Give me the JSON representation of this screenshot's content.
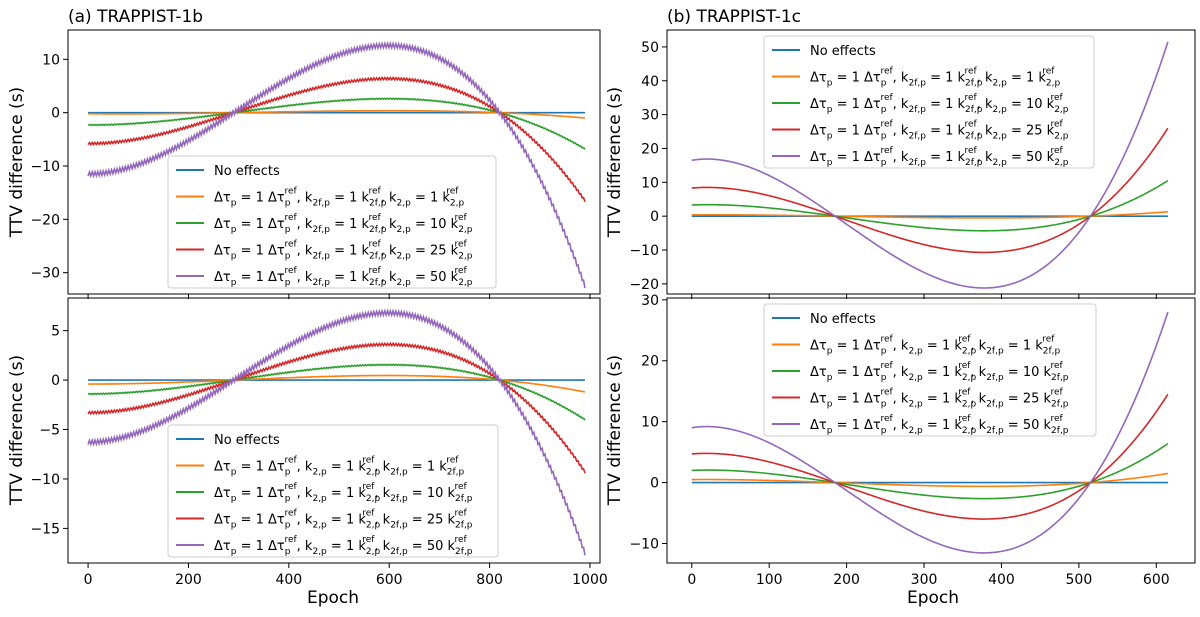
{
  "figure": {
    "titles": [
      "(a) TRAPPIST-1b",
      "(b) TRAPPIST-1c"
    ],
    "xlabel": "Epoch",
    "ylabel": "TTV difference (s)"
  },
  "colors": {
    "no_effects": "#1f77b4",
    "s1": "#ff7f0e",
    "s10": "#2ca02c",
    "s25": "#d62728",
    "s50": "#9467bd"
  },
  "chart_data": [
    {
      "id": "b-top",
      "type": "line",
      "title": "(a) TRAPPIST-1b",
      "xlabel": "",
      "ylabel": "TTV difference (s)",
      "xlim": [
        -40,
        1020
      ],
      "ylim": [
        -34,
        15.5
      ],
      "xticks": [
        0,
        200,
        400,
        600,
        800,
        1000
      ],
      "yticks": [
        -30,
        -20,
        -10,
        0,
        10
      ],
      "x_tick_labels_shown": false,
      "zeros": [
        290,
        820
      ],
      "x_end": 990,
      "ripple": true,
      "legend": {
        "position": "lower-center",
        "pre": "Δτ",
        "mid": "k",
        "pair": [
          "2f,p",
          "2,p"
        ],
        "labels": [
          "No effects",
          "1",
          "10",
          "25",
          "50"
        ]
      },
      "series": [
        {
          "name": "No effects",
          "value_at_0": 0,
          "value_at_end": 0
        },
        {
          "name": "1",
          "value_at_0": -0.2,
          "value_at_end": -1.0
        },
        {
          "name": "10",
          "value_at_0": -2.3,
          "value_at_end": -6.8
        },
        {
          "name": "25",
          "value_at_0": -5.8,
          "value_at_end": -16.5
        },
        {
          "name": "50",
          "value_at_0": -11.5,
          "value_at_end": -32.5
        }
      ]
    },
    {
      "id": "b-bottom",
      "type": "line",
      "title": "",
      "xlabel": "Epoch",
      "ylabel": "TTV difference (s)",
      "xlim": [
        -40,
        1020
      ],
      "ylim": [
        -18.5,
        8.3
      ],
      "xticks": [
        0,
        200,
        400,
        600,
        800,
        1000
      ],
      "yticks": [
        -15,
        -10,
        -5,
        0,
        5
      ],
      "x_tick_labels_shown": true,
      "zeros": [
        290,
        820
      ],
      "x_end": 990,
      "ripple": true,
      "legend": {
        "position": "lower-center",
        "pre": "Δτ",
        "mid": "k",
        "pair": [
          "2,p",
          "2f,p"
        ],
        "labels": [
          "No effects",
          "1",
          "10",
          "25",
          "50"
        ]
      },
      "series": [
        {
          "name": "No effects",
          "value_at_0": 0,
          "value_at_end": 0
        },
        {
          "name": "1",
          "value_at_0": -0.4,
          "value_at_end": -1.2
        },
        {
          "name": "10",
          "value_at_0": -1.4,
          "value_at_end": -4.0
        },
        {
          "name": "25",
          "value_at_0": -3.3,
          "value_at_end": -9.3
        },
        {
          "name": "50",
          "value_at_0": -6.3,
          "value_at_end": -17.5
        }
      ]
    },
    {
      "id": "c-top",
      "type": "line",
      "title": "(b) TRAPPIST-1c",
      "xlabel": "",
      "ylabel": "TTV difference (s)",
      "xlim": [
        -32,
        650
      ],
      "ylim": [
        -23,
        55
      ],
      "xticks": [
        0,
        100,
        200,
        300,
        400,
        500,
        600
      ],
      "yticks": [
        -20,
        -10,
        0,
        10,
        20,
        30,
        40,
        50
      ],
      "x_tick_labels_shown": false,
      "zeros": [
        185,
        515
      ],
      "x_end": 615,
      "ripple": false,
      "legend": {
        "position": "upper-center",
        "pre": "Δτ",
        "mid": "k",
        "pair": [
          "2f,p",
          "2,p"
        ],
        "labels": [
          "No effects",
          "1",
          "10",
          "25",
          "50"
        ]
      },
      "series": [
        {
          "name": "No effects",
          "value_at_0": 0,
          "value_at_end": 0
        },
        {
          "name": "1",
          "value_at_0": 0.4,
          "value_at_end": 1.3
        },
        {
          "name": "10",
          "value_at_0": 3.3,
          "value_at_end": 10.5
        },
        {
          "name": "25",
          "value_at_0": 8.3,
          "value_at_end": 26.0
        },
        {
          "name": "50",
          "value_at_0": 16.5,
          "value_at_end": 51.5
        }
      ]
    },
    {
      "id": "c-bottom",
      "type": "line",
      "title": "",
      "xlabel": "Epoch",
      "ylabel": "TTV difference (s)",
      "xlim": [
        -32,
        650
      ],
      "ylim": [
        -13.2,
        30.3
      ],
      "xticks": [
        0,
        100,
        200,
        300,
        400,
        500,
        600
      ],
      "yticks": [
        -10,
        0,
        10,
        20,
        30
      ],
      "x_tick_labels_shown": true,
      "zeros": [
        185,
        515
      ],
      "x_end": 615,
      "ripple": false,
      "legend": {
        "position": "upper-center",
        "pre": "Δτ",
        "mid": "k",
        "pair": [
          "2,p",
          "2f,p"
        ],
        "labels": [
          "No effects",
          "1",
          "10",
          "25",
          "50"
        ]
      },
      "series": [
        {
          "name": "No effects",
          "value_at_0": 0,
          "value_at_end": 0
        },
        {
          "name": "1",
          "value_at_0": 0.5,
          "value_at_end": 1.5
        },
        {
          "name": "10",
          "value_at_0": 2.0,
          "value_at_end": 6.4
        },
        {
          "name": "25",
          "value_at_0": 4.7,
          "value_at_end": 14.5
        },
        {
          "name": "50",
          "value_at_0": 9.0,
          "value_at_end": 28.0
        }
      ]
    }
  ]
}
